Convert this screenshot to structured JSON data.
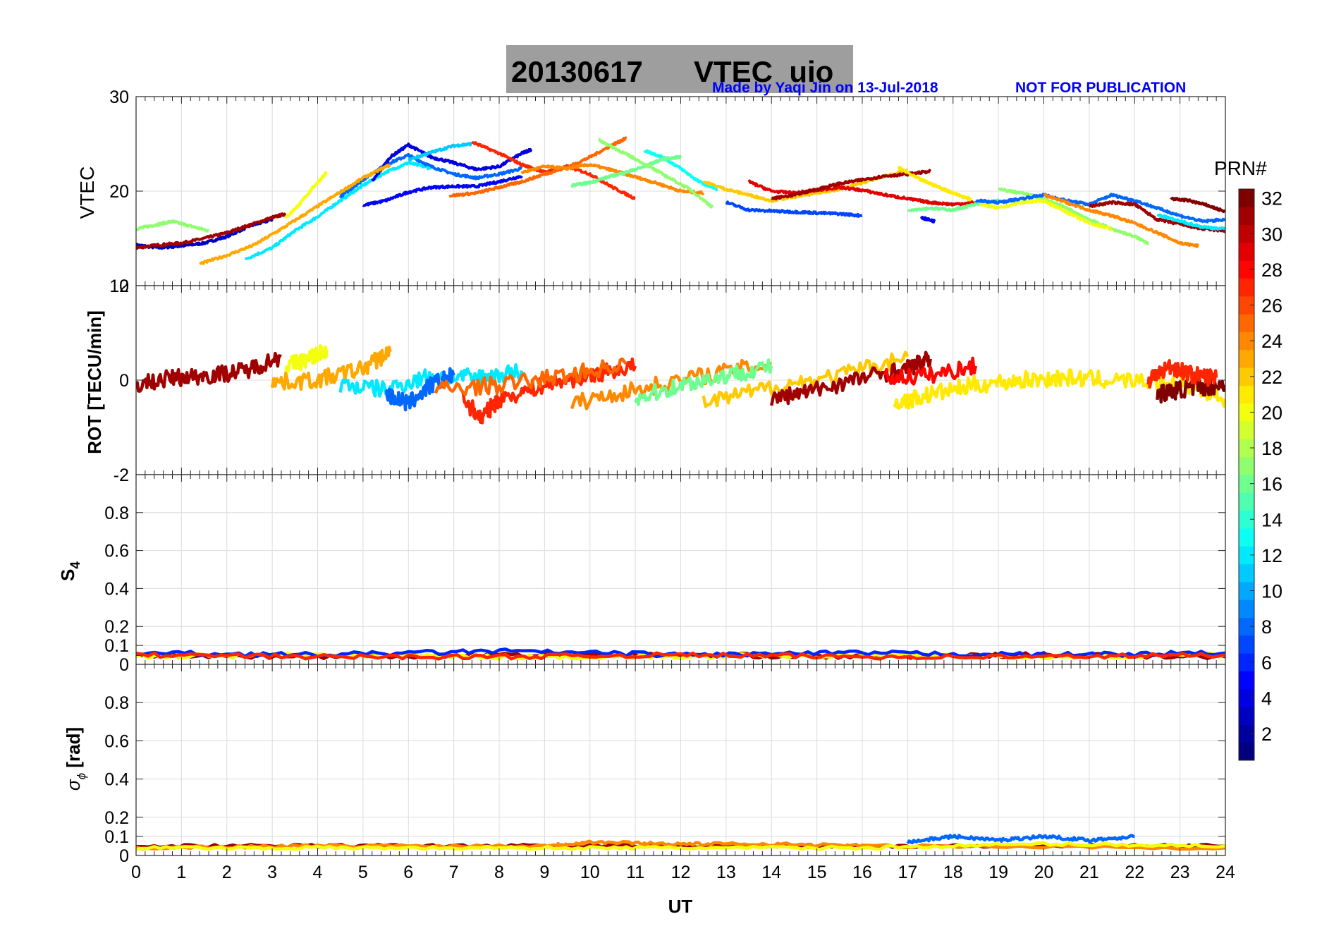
{
  "figure": {
    "title_date": "20130617",
    "title_main": "VTEC  uio",
    "credit": "Made by Yaqi Jin on 13-Jul-2018",
    "notice": "NOT FOR PUBLICATION",
    "colors": {
      "title_box": "#9e9e9e",
      "annotation": "#0000ff",
      "grid": "#dcdcdc",
      "axis": "#262626"
    }
  },
  "chart_data": [
    {
      "type": "line",
      "panel": "VTEC",
      "ylabel": "VTEC",
      "ylim": [
        10,
        30
      ],
      "yticks": [
        "10",
        "20",
        "30"
      ],
      "xlim": [
        0,
        24
      ],
      "grid": true,
      "series_note": "approximate traces per PRN, estimated from plot",
      "series": [
        {
          "prn": 3,
          "x": [
            0.0,
            0.5,
            1.0,
            1.5,
            2.0,
            2.5,
            3.0
          ],
          "y": [
            14.3,
            14.0,
            14.2,
            14.5,
            15.2,
            16.3,
            17.0
          ]
        },
        {
          "prn": 31,
          "x": [
            0.0,
            0.5,
            1.0,
            1.5,
            2.0,
            2.5,
            3.0,
            3.3
          ],
          "y": [
            14.0,
            14.3,
            14.5,
            15.0,
            15.6,
            16.4,
            17.2,
            17.6
          ]
        },
        {
          "prn": 17,
          "x": [
            0.0,
            0.4,
            0.8,
            1.2,
            1.6
          ],
          "y": [
            16.0,
            16.4,
            16.8,
            16.3,
            15.8
          ]
        },
        {
          "prn": 12,
          "x": [
            2.4,
            3.0,
            3.5,
            4.0,
            4.5,
            5.0,
            5.5,
            6.0,
            6.5
          ],
          "y": [
            12.8,
            14.0,
            15.8,
            17.3,
            19.0,
            20.6,
            22.0,
            23.0,
            22.4
          ]
        },
        {
          "prn": 8,
          "x": [
            4.5,
            5.0,
            5.5,
            6.0,
            6.5,
            7.0,
            7.5,
            8.0,
            8.5
          ],
          "y": [
            19.4,
            21.2,
            22.8,
            23.8,
            22.6,
            21.8,
            21.4,
            21.8,
            22.4
          ]
        },
        {
          "prn": 4,
          "x": [
            5.2,
            5.6,
            6.0,
            6.5,
            7.0,
            7.5,
            8.0,
            8.5,
            8.7
          ],
          "y": [
            21.0,
            23.6,
            24.9,
            23.6,
            23.0,
            22.3,
            22.6,
            24.0,
            24.4
          ]
        },
        {
          "prn": 5,
          "x": [
            5.0,
            5.5,
            6.0,
            6.5,
            7.0,
            7.5,
            8.0,
            8.5
          ],
          "y": [
            18.5,
            19.0,
            19.9,
            20.4,
            20.5,
            20.5,
            21.0,
            21.6
          ]
        },
        {
          "prn": 20,
          "x": [
            3.3,
            3.6,
            3.9,
            4.2
          ],
          "y": [
            17.2,
            18.6,
            20.4,
            22.0
          ]
        },
        {
          "prn": 23,
          "x": [
            1.4,
            2.0,
            2.6,
            3.2,
            3.8,
            4.4,
            5.0,
            5.6
          ],
          "y": [
            12.3,
            13.2,
            14.3,
            16.0,
            17.8,
            19.6,
            21.4,
            22.8
          ]
        },
        {
          "prn": 11,
          "x": [
            6.0,
            6.5,
            7.0,
            7.4
          ],
          "y": [
            23.3,
            24.1,
            24.8,
            25.0
          ]
        },
        {
          "prn": 27,
          "x": [
            7.4,
            8.0,
            8.5,
            9.0,
            9.5,
            10.0,
            10.5,
            11.0
          ],
          "y": [
            25.2,
            24.0,
            22.8,
            22.0,
            22.6,
            21.8,
            20.4,
            19.2
          ]
        },
        {
          "prn": 25,
          "x": [
            6.9,
            7.5,
            8.0,
            8.5,
            9.0,
            9.5,
            10.0,
            10.5,
            10.8
          ],
          "y": [
            19.5,
            19.8,
            20.4,
            21.0,
            21.8,
            22.5,
            23.6,
            24.9,
            25.6
          ]
        },
        {
          "prn": 24,
          "x": [
            8.5,
            9.0,
            9.5,
            10.0,
            10.5,
            11.0,
            11.5,
            12.0,
            12.5
          ],
          "y": [
            22.0,
            22.6,
            22.4,
            22.8,
            22.2,
            21.5,
            20.8,
            20.0,
            19.8
          ]
        },
        {
          "prn": 13,
          "x": [
            11.2,
            11.6,
            12.0,
            12.4,
            12.8
          ],
          "y": [
            24.3,
            23.6,
            22.4,
            21.0,
            20.2
          ]
        },
        {
          "prn": 16,
          "x": [
            9.6,
            10.0,
            10.4,
            10.8,
            11.2,
            11.6,
            12.0
          ],
          "y": [
            20.6,
            20.9,
            21.5,
            22.0,
            22.6,
            23.4,
            23.6
          ]
        },
        {
          "prn": 17,
          "x": [
            10.2,
            10.6,
            11.0,
            11.6,
            12.2,
            12.7
          ],
          "y": [
            25.4,
            24.4,
            23.4,
            21.8,
            20.2,
            18.3
          ]
        },
        {
          "prn": 7,
          "x": [
            13.0,
            13.5,
            14.0,
            14.5,
            15.0,
            15.5,
            16.0
          ],
          "y": [
            18.8,
            18.0,
            17.9,
            17.8,
            17.7,
            17.6,
            17.4
          ]
        },
        {
          "prn": 22,
          "x": [
            12.5,
            13.0,
            13.5,
            14.0,
            14.5,
            15.0,
            15.5,
            16.0,
            16.5,
            17.0
          ],
          "y": [
            21.0,
            20.2,
            19.6,
            19.0,
            19.4,
            19.8,
            20.2,
            20.9,
            21.6,
            22.2
          ]
        },
        {
          "prn": 29,
          "x": [
            13.5,
            14.0,
            14.5,
            15.0,
            15.5,
            16.0,
            16.5,
            17.0,
            17.5,
            18.0,
            18.5
          ],
          "y": [
            21.0,
            20.0,
            19.8,
            20.1,
            20.4,
            20.1,
            19.6,
            19.2,
            18.8,
            18.6,
            18.8
          ]
        },
        {
          "prn": 31,
          "x": [
            14.0,
            14.5,
            15.0,
            15.5,
            16.0,
            16.5,
            17.0,
            17.5
          ],
          "y": [
            19.2,
            19.6,
            20.2,
            20.8,
            21.2,
            21.6,
            21.8,
            22.1
          ]
        },
        {
          "prn": 21,
          "x": [
            16.8,
            17.2,
            17.6,
            18.0,
            18.4
          ],
          "y": [
            22.5,
            21.4,
            20.6,
            19.8,
            19.1
          ]
        },
        {
          "prn": 5,
          "x": [
            17.3,
            17.6
          ],
          "y": [
            17.2,
            16.8
          ]
        },
        {
          "prn": 16,
          "x": [
            17.0,
            17.5,
            18.0,
            18.5,
            19.0
          ],
          "y": [
            18.0,
            18.2,
            18.0,
            18.6,
            19.0
          ]
        },
        {
          "prn": 17,
          "x": [
            19.0,
            19.5,
            20.0,
            20.5,
            21.0,
            21.5,
            22.0,
            22.3
          ],
          "y": [
            20.2,
            19.8,
            19.2,
            18.2,
            17.0,
            16.0,
            15.2,
            14.5
          ]
        },
        {
          "prn": 20,
          "x": [
            18.6,
            19.0,
            19.5,
            20.0,
            20.5,
            21.0,
            21.5
          ],
          "y": [
            18.6,
            18.2,
            18.8,
            19.0,
            17.8,
            16.6,
            16.0
          ]
        },
        {
          "prn": 8,
          "x": [
            18.5,
            19.0,
            19.5,
            20.0,
            20.5,
            21.0,
            21.5,
            22.0,
            22.5,
            23.0,
            23.5,
            24.0
          ],
          "y": [
            19.0,
            18.8,
            19.2,
            19.6,
            19.0,
            18.6,
            19.6,
            19.0,
            18.2,
            17.4,
            16.8,
            17.0
          ]
        },
        {
          "prn": 24,
          "x": [
            20.0,
            20.5,
            21.0,
            21.5,
            22.0,
            22.5,
            23.0,
            23.4
          ],
          "y": [
            19.6,
            18.8,
            18.0,
            17.4,
            16.6,
            15.6,
            14.5,
            14.2
          ]
        },
        {
          "prn": 31,
          "x": [
            21.0,
            21.5,
            22.0,
            22.5,
            23.0,
            23.5,
            24.0
          ],
          "y": [
            18.4,
            18.8,
            18.6,
            17.0,
            16.5,
            16.0,
            15.8
          ]
        },
        {
          "prn": 32,
          "x": [
            22.8,
            23.2,
            23.6,
            24.0
          ],
          "y": [
            19.2,
            19.0,
            18.5,
            17.8
          ]
        },
        {
          "prn": 12,
          "x": [
            22.5,
            23.0,
            23.5,
            24.0
          ],
          "y": [
            17.5,
            16.8,
            16.2,
            16.0
          ]
        }
      ]
    },
    {
      "type": "line",
      "panel": "ROT",
      "ylabel": "ROT [TECU/min]",
      "ylim": [
        -2,
        2
      ],
      "yticks": [
        "-2",
        "0",
        "2"
      ],
      "xlim": [
        0,
        24
      ],
      "grid": true,
      "series": [
        {
          "prn": 31,
          "x": [
            0.0,
            0.8,
            1.6,
            2.4,
            3.2
          ],
          "y": [
            -0.1,
            0.05,
            0.1,
            0.2,
            0.5
          ]
        },
        {
          "prn": 20,
          "x": [
            3.3,
            3.8,
            4.2
          ],
          "y": [
            0.3,
            0.45,
            0.65
          ]
        },
        {
          "prn": 23,
          "x": [
            3.0,
            4.0,
            5.0,
            5.6
          ],
          "y": [
            -0.05,
            0.0,
            0.25,
            0.6
          ]
        },
        {
          "prn": 12,
          "x": [
            4.5,
            5.5,
            6.5,
            7.5,
            8.5
          ],
          "y": [
            -0.1,
            -0.2,
            0.1,
            0.05,
            0.2
          ]
        },
        {
          "prn": 8,
          "x": [
            5.5,
            6.0,
            6.5,
            7.0
          ],
          "y": [
            -0.3,
            -0.5,
            -0.1,
            0.1
          ]
        },
        {
          "prn": 27,
          "x": [
            7.2,
            7.6,
            8.0,
            9.0,
            10.0,
            11.0
          ],
          "y": [
            -0.4,
            -0.8,
            -0.4,
            -0.1,
            0.1,
            0.3
          ]
        },
        {
          "prn": 25,
          "x": [
            6.6,
            8.0,
            9.5,
            10.8
          ],
          "y": [
            -0.2,
            -0.1,
            0.1,
            0.35
          ]
        },
        {
          "prn": 24,
          "x": [
            9.6,
            11.0,
            12.5,
            14.0
          ],
          "y": [
            -0.5,
            -0.2,
            0.1,
            0.35
          ]
        },
        {
          "prn": 16,
          "x": [
            11.0,
            12.0,
            13.0,
            14.0
          ],
          "y": [
            -0.4,
            -0.1,
            0.1,
            0.3
          ]
        },
        {
          "prn": 22,
          "x": [
            12.5,
            14.0,
            15.5,
            17.0
          ],
          "y": [
            -0.5,
            -0.15,
            0.1,
            0.5
          ]
        },
        {
          "prn": 31,
          "x": [
            14.0,
            15.0,
            16.0,
            17.0,
            17.5
          ],
          "y": [
            -0.4,
            -0.2,
            0.05,
            0.25,
            0.45
          ]
        },
        {
          "prn": 28,
          "x": [
            16.5,
            17.5,
            18.5
          ],
          "y": [
            0.05,
            0.1,
            0.3
          ]
        },
        {
          "prn": 21,
          "x": [
            16.7,
            17.5,
            18.5,
            19.5,
            20.5,
            21.5,
            23.0,
            24.0
          ],
          "y": [
            -0.5,
            -0.3,
            -0.1,
            0.0,
            0.05,
            0.0,
            -0.05,
            -0.4
          ]
        },
        {
          "prn": 32,
          "x": [
            22.5,
            23.0,
            23.5,
            24.0
          ],
          "y": [
            -0.3,
            -0.2,
            -0.15,
            -0.1
          ]
        },
        {
          "prn": 27,
          "x": [
            22.3,
            22.8,
            23.3,
            23.8
          ],
          "y": [
            0.0,
            0.3,
            0.1,
            0.05
          ]
        }
      ]
    },
    {
      "type": "line",
      "panel": "S4",
      "ylabel": "S4",
      "ylim": [
        0,
        1
      ],
      "yticks": [
        "0",
        "0.1",
        "0.2",
        "0.4",
        "0.6",
        "0.8"
      ],
      "xlim": [
        0,
        24
      ],
      "grid": true,
      "series": [
        {
          "prn": 31,
          "x": [
            0,
            4,
            8,
            12,
            16,
            20,
            24
          ],
          "y": [
            0.05,
            0.04,
            0.05,
            0.05,
            0.04,
            0.05,
            0.04
          ]
        },
        {
          "prn": 20,
          "x": [
            0,
            4,
            8,
            12,
            16,
            20,
            24
          ],
          "y": [
            0.04,
            0.05,
            0.04,
            0.04,
            0.05,
            0.04,
            0.05
          ]
        },
        {
          "prn": 6,
          "x": [
            0,
            4,
            8,
            12,
            16,
            20,
            24
          ],
          "y": [
            0.06,
            0.05,
            0.07,
            0.05,
            0.06,
            0.05,
            0.06
          ]
        },
        {
          "prn": 27,
          "x": [
            0,
            4,
            8,
            12,
            16,
            20,
            24
          ],
          "y": [
            0.05,
            0.04,
            0.04,
            0.05,
            0.04,
            0.04,
            0.05
          ]
        }
      ]
    },
    {
      "type": "line",
      "panel": "sigma_phi",
      "ylabel": "σφ [rad]",
      "ylim": [
        0,
        1
      ],
      "yticks": [
        "0",
        "0.1",
        "0.2",
        "0.4",
        "0.6",
        "0.8"
      ],
      "xlim": [
        0,
        24
      ],
      "xticks": [
        "0",
        "1",
        "2",
        "3",
        "4",
        "5",
        "6",
        "7",
        "8",
        "9",
        "10",
        "11",
        "12",
        "13",
        "14",
        "15",
        "16",
        "17",
        "18",
        "19",
        "20",
        "21",
        "22",
        "23",
        "24"
      ],
      "xlabel": "UT",
      "grid": true,
      "series": [
        {
          "prn": 31,
          "x": [
            0,
            4,
            8,
            12,
            16,
            20,
            24
          ],
          "y": [
            0.05,
            0.05,
            0.05,
            0.05,
            0.05,
            0.05,
            0.05
          ]
        },
        {
          "prn": 24,
          "x": [
            0,
            4,
            9,
            10,
            12,
            14,
            16,
            24
          ],
          "y": [
            0.04,
            0.05,
            0.05,
            0.07,
            0.06,
            0.06,
            0.05,
            0.04
          ]
        },
        {
          "prn": 8,
          "x": [
            17,
            18,
            19,
            20,
            21,
            22
          ],
          "y": [
            0.07,
            0.1,
            0.08,
            0.1,
            0.08,
            0.1
          ]
        },
        {
          "prn": 20,
          "x": [
            0,
            4,
            8,
            12,
            16,
            20,
            24
          ],
          "y": [
            0.04,
            0.04,
            0.04,
            0.04,
            0.04,
            0.06,
            0.05
          ]
        }
      ]
    }
  ],
  "colorbar": {
    "title": "PRN#",
    "min": 1,
    "max": 32,
    "ticks": [
      "2",
      "4",
      "6",
      "8",
      "10",
      "12",
      "14",
      "16",
      "18",
      "20",
      "22",
      "24",
      "26",
      "28",
      "30",
      "32"
    ],
    "colormap": "jet"
  }
}
